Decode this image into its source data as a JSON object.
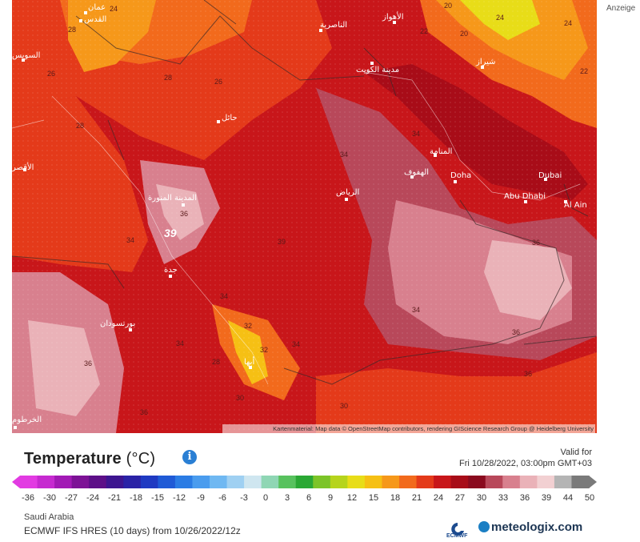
{
  "advert": "Anzeige",
  "legend": {
    "title": "Temperature",
    "unit": "(°C)",
    "valid_label": "Valid for",
    "valid_time": "Fri 10/28/2022, 03:00pm GMT+03",
    "ticks": [
      "-36",
      "-30",
      "-27",
      "-24",
      "-21",
      "-18",
      "-15",
      "-12",
      "-9",
      "-6",
      "-3",
      "0",
      "3",
      "6",
      "9",
      "12",
      "15",
      "18",
      "21",
      "24",
      "27",
      "30",
      "33",
      "36",
      "39",
      "44",
      "50"
    ],
    "colors": [
      "#e23be2",
      "#c62ad0",
      "#a21ab5",
      "#7d1296",
      "#5d0f88",
      "#3d1590",
      "#2a22a6",
      "#1f3ac2",
      "#1f5ad6",
      "#2b7ce4",
      "#4a9cee",
      "#6fb8f2",
      "#9fd0f2",
      "#cfe6f0",
      "#8fd6b4",
      "#58c25e",
      "#2aa834",
      "#7cc428",
      "#b6d41c",
      "#e8dd18",
      "#f6c014",
      "#f6981a",
      "#f26a1c",
      "#e43a1a",
      "#c8161a",
      "#a80c18",
      "#8a0a1e",
      "#b8485a",
      "#d8808e",
      "#eab2b8",
      "#f2d0d2",
      "#b4b4b4",
      "#7a7a7a"
    ]
  },
  "region": "Saudi Arabia",
  "model": "ECMWF IFS HRES (10 days) from 10/26/2022/12z",
  "brand_small": "ECMWF",
  "brand": "meteologix.com",
  "attribution": "Kartenmaterial: Map data © OpenStreetMap contributors, rendering GIScience Research Group @ Heidelberg University",
  "map": {
    "cities": [
      {
        "name": "عمان"
      },
      {
        "name": "القدس"
      },
      {
        "name": "السويس"
      },
      {
        "name": "الأقصر"
      },
      {
        "name": "حائل"
      },
      {
        "name": "الناصرية"
      },
      {
        "name": "الأهواز"
      },
      {
        "name": "مدينة الكويت"
      },
      {
        "name": "شيراز"
      },
      {
        "name": "المدينة المنورة"
      },
      {
        "name": "الرياض"
      },
      {
        "name": "المنامة"
      },
      {
        "name": "الهفوف"
      },
      {
        "name": "Doha"
      },
      {
        "name": "Dubai"
      },
      {
        "name": "Abu Dhabi"
      },
      {
        "name": "Al Ain"
      },
      {
        "name": "جدة"
      },
      {
        "name": "بورتسودان"
      },
      {
        "name": "أبها"
      },
      {
        "name": "الخرطوم"
      }
    ],
    "isotherms": [
      "24",
      "28",
      "28",
      "26",
      "26",
      "28",
      "34",
      "34",
      "36",
      "39",
      "34",
      "34",
      "34",
      "36",
      "36",
      "34",
      "34",
      "32",
      "30",
      "36",
      "36",
      "36",
      "30",
      "28",
      "20",
      "20",
      "22",
      "24",
      "24",
      "22",
      "32"
    ],
    "max_value": "39"
  }
}
